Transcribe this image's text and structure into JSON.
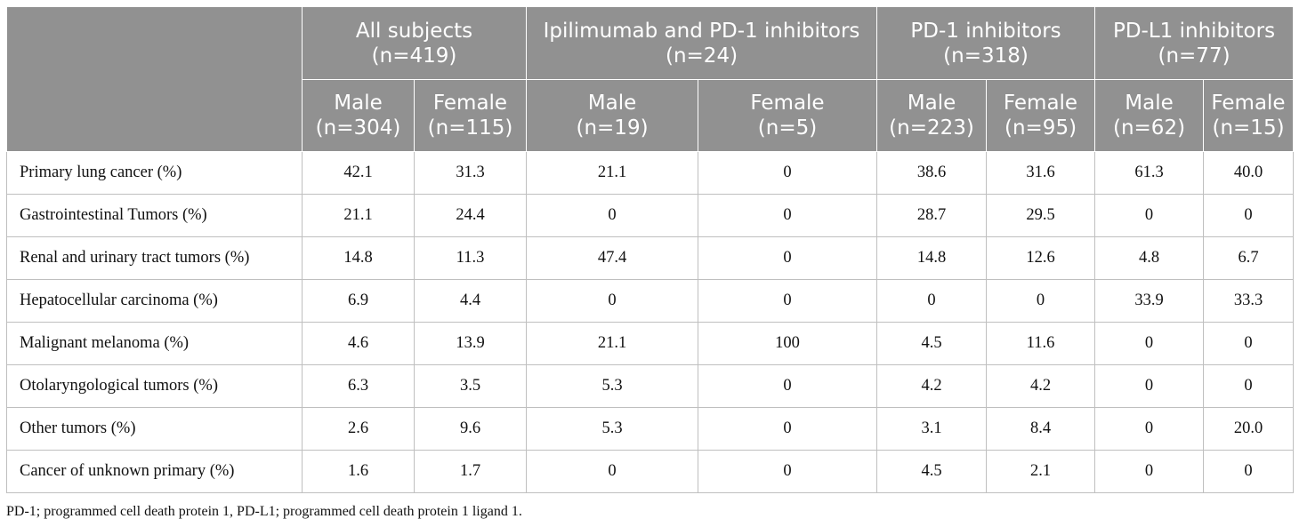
{
  "table": {
    "groups": [
      {
        "title": "All subjects",
        "n": "(n=419)"
      },
      {
        "title": "Ipilimumab and PD-1 inhibitors",
        "n": "(n=24)"
      },
      {
        "title": "PD-1 inhibitors",
        "n": "(n=318)"
      },
      {
        "title": "PD-L1 inhibitors",
        "n": "(n=77)"
      }
    ],
    "subcols": [
      {
        "sex": "Male",
        "n": "(n=304)"
      },
      {
        "sex": "Female",
        "n": "(n=115)"
      },
      {
        "sex": "Male",
        "n": "(n=19)"
      },
      {
        "sex": "Female",
        "n": "(n=5)"
      },
      {
        "sex": "Male",
        "n": "(n=223)"
      },
      {
        "sex": "Female",
        "n": "(n=95)"
      },
      {
        "sex": "Male",
        "n": "(n=62)"
      },
      {
        "sex": "Female",
        "n": "(n=15)"
      }
    ],
    "rows": [
      {
        "label": "Primary lung cancer (%)",
        "values": [
          "42.1",
          "31.3",
          "21.1",
          "0",
          "38.6",
          "31.6",
          "61.3",
          "40.0"
        ]
      },
      {
        "label": "Gastrointestinal Tumors (%)",
        "values": [
          "21.1",
          "24.4",
          "0",
          "0",
          "28.7",
          "29.5",
          "0",
          "0"
        ]
      },
      {
        "label": "Renal and urinary tract tumors (%)",
        "values": [
          "14.8",
          "11.3",
          "47.4",
          "0",
          "14.8",
          "12.6",
          "4.8",
          "6.7"
        ]
      },
      {
        "label": "Hepatocellular carcinoma (%)",
        "values": [
          "6.9",
          "4.4",
          "0",
          "0",
          "0",
          "0",
          "33.9",
          "33.3"
        ]
      },
      {
        "label": "Malignant melanoma (%)",
        "values": [
          "4.6",
          "13.9",
          "21.1",
          "100",
          "4.5",
          "11.6",
          "0",
          "0"
        ]
      },
      {
        "label": "Otolaryngological tumors (%)",
        "values": [
          "6.3",
          "3.5",
          "5.3",
          "0",
          "4.2",
          "4.2",
          "0",
          "0"
        ]
      },
      {
        "label": "Other tumors (%)",
        "values": [
          "2.6",
          "9.6",
          "5.3",
          "0",
          "3.1",
          "8.4",
          "0",
          "20.0"
        ]
      },
      {
        "label": "Cancer of unknown primary (%)",
        "values": [
          "1.6",
          "1.7",
          "0",
          "0",
          "4.5",
          "2.1",
          "0",
          "0"
        ]
      }
    ]
  },
  "footnote": "PD-1; programmed cell death protein 1, PD-L1; programmed cell death protein 1 ligand 1."
}
